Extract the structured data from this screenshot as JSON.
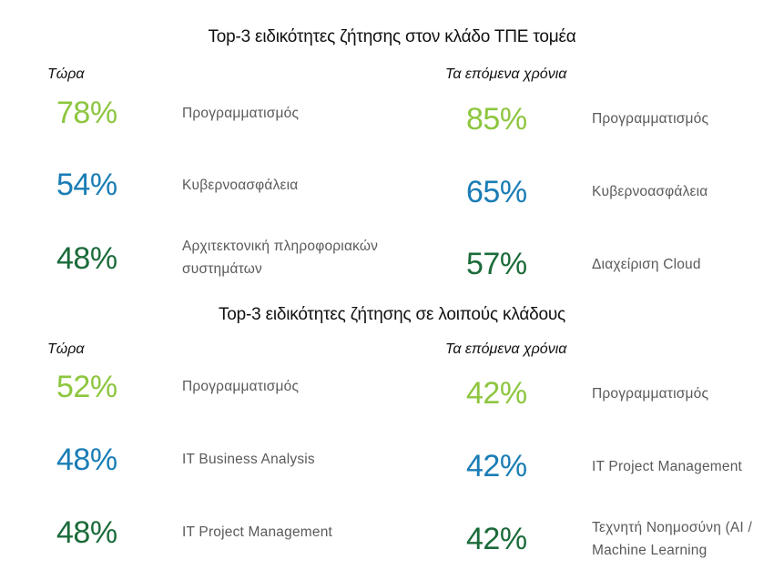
{
  "section_ict": {
    "title": "Top-3 ειδικότητες ζήτησης στον κλάδο ΤΠΕ τομέα",
    "now": {
      "heading": "Τώρα",
      "items": [
        {
          "percent": "78%",
          "label": "Προγραμματισμός"
        },
        {
          "percent": "54%",
          "label": "Κυβερνοασφάλεια"
        },
        {
          "percent": "48%",
          "label": "Αρχιτεκτονική πληροφοριακών συστημάτων"
        }
      ]
    },
    "next": {
      "heading": "Τα επόμενα χρόνια",
      "items": [
        {
          "percent": "85%",
          "label": "Προγραμματισμός"
        },
        {
          "percent": "65%",
          "label": "Κυβερνοασφάλεια"
        },
        {
          "percent": "57%",
          "label": "Διαχείριση Cloud"
        }
      ]
    }
  },
  "section_other": {
    "title": "Top-3 ειδικότητες ζήτησης σε λοιπούς κλάδους",
    "now": {
      "heading": "Τώρα",
      "items": [
        {
          "percent": "52%",
          "label": "Προγραμματισμός"
        },
        {
          "percent": "48%",
          "label": "IT Business Analysis"
        },
        {
          "percent": "48%",
          "label": "IT Project Management"
        }
      ]
    },
    "next": {
      "heading": "Τα επόμενα χρόνια",
      "items": [
        {
          "percent": "42%",
          "label": "Προγραμματισμός"
        },
        {
          "percent": "42%",
          "label": "IT Project Management"
        },
        {
          "percent": "42%",
          "label": "Τεχνητή Νοημοσύνη (AI / Machine Learning"
        }
      ]
    }
  },
  "colors": {
    "rank_1": "#8dc63f",
    "rank_2": "#1a7db5",
    "rank_3": "#1b6b3a",
    "label_text": "#5a5a5a"
  }
}
